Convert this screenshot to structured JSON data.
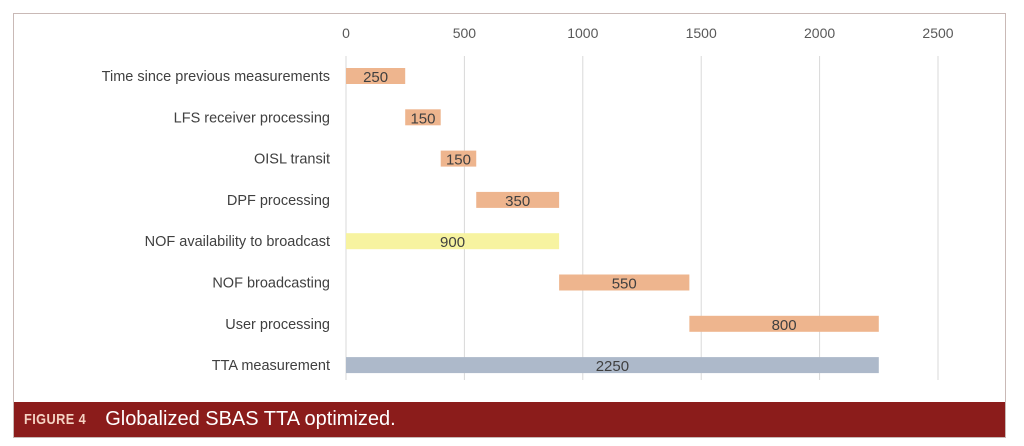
{
  "chart_data": {
    "type": "bar",
    "orientation": "horizontal-floating",
    "xlim": [
      0,
      2500
    ],
    "x_ticks": [
      "0",
      "500",
      "1000",
      "1500",
      "2000",
      "2500"
    ],
    "x_axis_position": "top",
    "grid": true,
    "categories": [
      "Time since previous measurements",
      "LFS receiver processing",
      "OISL transit",
      "DPF processing",
      "NOF availability to broadcast",
      "NOF broadcasting",
      "User processing",
      "TTA measurement"
    ],
    "starts": [
      0,
      250,
      400,
      550,
      0,
      900,
      1450,
      0
    ],
    "values": [
      250,
      150,
      150,
      350,
      900,
      550,
      800,
      2250
    ],
    "value_labels": [
      "250",
      "150",
      "150",
      "350",
      "900",
      "550",
      "800",
      "2250"
    ],
    "colors": [
      "#eeb58e",
      "#eeb58e",
      "#eeb58e",
      "#eeb58e",
      "#f7f3a0",
      "#eeb58e",
      "#eeb58e",
      "#adb9ca"
    ]
  },
  "caption": {
    "figure_label": "FIGURE 4",
    "title": "Globalized SBAS TTA optimized."
  }
}
